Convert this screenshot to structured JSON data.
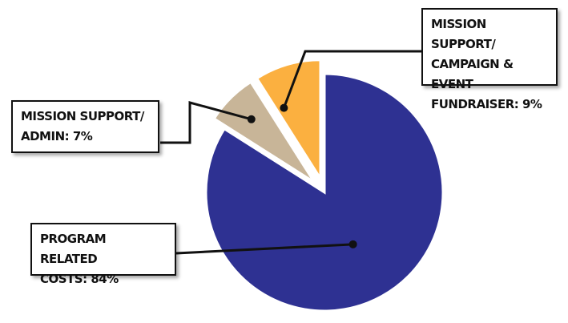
{
  "chart_data": {
    "type": "pie",
    "slices": [
      {
        "label": "PROGRAM RELATED\nCOSTS: 84%",
        "value": 84,
        "color": "#2e3192"
      },
      {
        "label": "MISSION SUPPORT/\nADMIN: 7%",
        "value": 7,
        "color": "#c8b598"
      },
      {
        "label": "MISSION SUPPORT/\nCAMPAIGN & EVENT\nFUNDRAISER: 9%",
        "value": 9,
        "color": "#fbb040"
      }
    ],
    "title": "",
    "legend": "callouts"
  }
}
